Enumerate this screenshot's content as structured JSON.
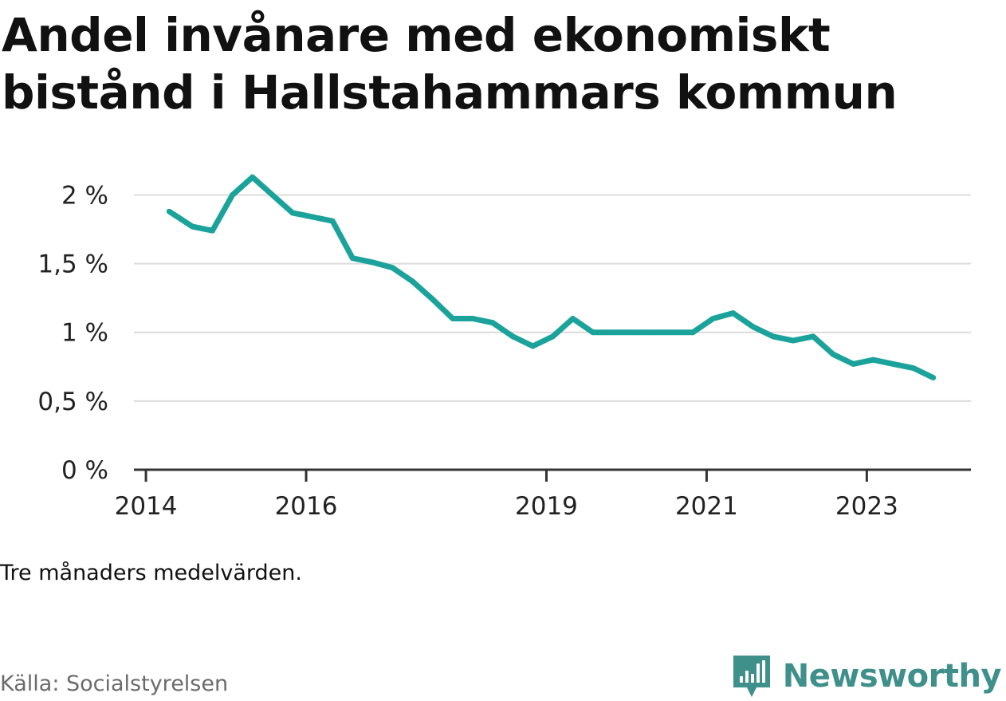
{
  "title": "Andel invånare med ekonomiskt bistånd i Hallstahammars kommun",
  "note": "Tre månaders medelvärden.",
  "source": "Källa: Socialstyrelsen",
  "brand": {
    "name": "Newsworthy",
    "icon": "newsworthy-logo-icon",
    "color": "#3f8f8b"
  },
  "chart_data": {
    "type": "line",
    "title": "Andel invånare med ekonomiskt bistånd i Hallstahammars kommun",
    "xlabel": "",
    "ylabel": "",
    "x_ticks": [
      {
        "label": "2014",
        "x": 2014.0
      },
      {
        "label": "2016",
        "x": 2016.0
      },
      {
        "label": "2019",
        "x": 2019.0
      },
      {
        "label": "2021",
        "x": 2021.0
      },
      {
        "label": "2023",
        "x": 2023.0
      }
    ],
    "y_ticks": [
      {
        "label": "0 %",
        "y": 0
      },
      {
        "label": "0,5 %",
        "y": 0.5
      },
      {
        "label": "1 %",
        "y": 1
      },
      {
        "label": "1,5 %",
        "y": 1.5
      },
      {
        "label": "2 %",
        "y": 2
      }
    ],
    "xlim": [
      2013.85,
      2024.3
    ],
    "ylim": [
      0,
      2.2
    ],
    "grid": true,
    "legend": "none",
    "series": [
      {
        "color": "#1ba39b",
        "points": [
          {
            "x": 2014.29,
            "y": 1.88
          },
          {
            "x": 2014.58,
            "y": 1.77
          },
          {
            "x": 2014.83,
            "y": 1.74
          },
          {
            "x": 2015.08,
            "y": 2.0
          },
          {
            "x": 2015.33,
            "y": 2.13
          },
          {
            "x": 2015.58,
            "y": 2.0
          },
          {
            "x": 2015.83,
            "y": 1.87
          },
          {
            "x": 2016.08,
            "y": 1.84
          },
          {
            "x": 2016.33,
            "y": 1.81
          },
          {
            "x": 2016.58,
            "y": 1.54
          },
          {
            "x": 2016.83,
            "y": 1.51
          },
          {
            "x": 2017.08,
            "y": 1.47
          },
          {
            "x": 2017.33,
            "y": 1.37
          },
          {
            "x": 2017.58,
            "y": 1.24
          },
          {
            "x": 2017.83,
            "y": 1.1
          },
          {
            "x": 2018.08,
            "y": 1.1
          },
          {
            "x": 2018.33,
            "y": 1.07
          },
          {
            "x": 2018.58,
            "y": 0.97
          },
          {
            "x": 2018.83,
            "y": 0.9
          },
          {
            "x": 2019.08,
            "y": 0.97
          },
          {
            "x": 2019.33,
            "y": 1.1
          },
          {
            "x": 2019.58,
            "y": 1.0
          },
          {
            "x": 2019.83,
            "y": 1.0
          },
          {
            "x": 2020.08,
            "y": 1.0
          },
          {
            "x": 2020.33,
            "y": 1.0
          },
          {
            "x": 2020.58,
            "y": 1.0
          },
          {
            "x": 2020.83,
            "y": 1.0
          },
          {
            "x": 2021.08,
            "y": 1.1
          },
          {
            "x": 2021.33,
            "y": 1.14
          },
          {
            "x": 2021.58,
            "y": 1.04
          },
          {
            "x": 2021.83,
            "y": 0.97
          },
          {
            "x": 2022.08,
            "y": 0.94
          },
          {
            "x": 2022.33,
            "y": 0.97
          },
          {
            "x": 2022.58,
            "y": 0.84
          },
          {
            "x": 2022.83,
            "y": 0.77
          },
          {
            "x": 2023.08,
            "y": 0.8
          },
          {
            "x": 2023.33,
            "y": 0.77
          },
          {
            "x": 2023.58,
            "y": 0.74
          },
          {
            "x": 2023.83,
            "y": 0.67
          }
        ]
      }
    ]
  }
}
